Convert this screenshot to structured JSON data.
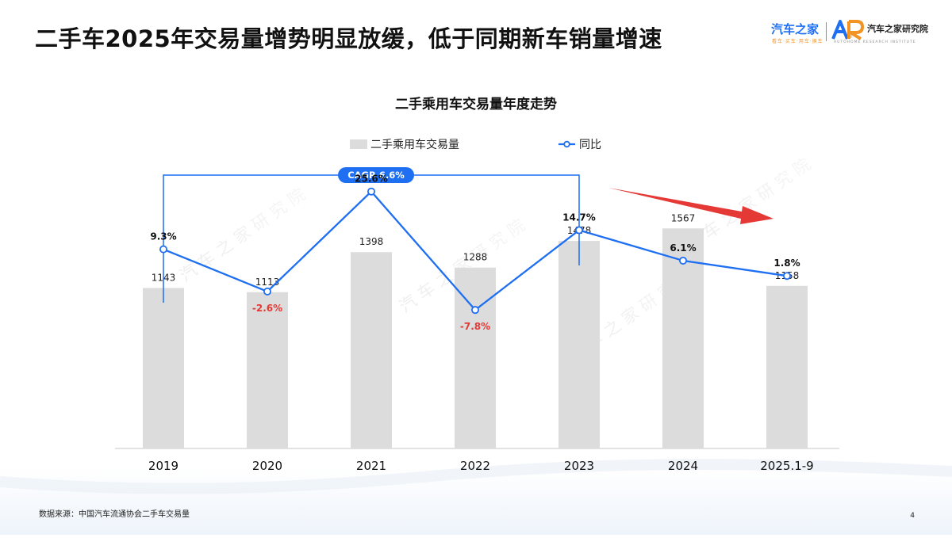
{
  "page": {
    "title": "二手车2025年交易量增势明显放缓，低于同期新车销量增速",
    "source": "数据来源：中国汽车流通协会二手车交易量",
    "page_number": "4"
  },
  "branding": {
    "primary_logo": "汽车之家",
    "primary_tagline": "看车·买车·用车·换车",
    "secondary_mark": "AR",
    "secondary_logo": "汽车之家研究院",
    "secondary_tagline": "AUTOHOME RESEARCH INSTITUTE"
  },
  "colors": {
    "bar": "#dcdcdc",
    "line": "#1f6ff2",
    "negative_label": "#e53935",
    "trend_arrow": "#e53935",
    "title_text": "#111111",
    "logo_blue": "#1f6ff2",
    "logo_orange": "#f29424",
    "footer_band": "#f4f7fb"
  },
  "chart_data": {
    "type": "bar",
    "title": "二手乘用车交易量年度走势",
    "categories": [
      "2019",
      "2020",
      "2021",
      "2022",
      "2023",
      "2024",
      "2025.1-9"
    ],
    "series": [
      {
        "name": "二手乘用车交易量",
        "type": "bar",
        "values": [
          1143,
          1113,
          1398,
          1288,
          1478,
          1567,
          1158
        ],
        "value_labels": [
          "1143",
          "1113",
          "1398",
          "1288",
          "1478",
          "1567",
          "1158"
        ]
      },
      {
        "name": "同比",
        "type": "line",
        "values": [
          9.3,
          -2.6,
          25.6,
          -7.8,
          14.7,
          6.1,
          1.8
        ],
        "value_labels": [
          "9.3%",
          "-2.6%",
          "25.6%",
          "-7.8%",
          "14.7%",
          "6.1%",
          "1.8%"
        ]
      }
    ],
    "annotation": {
      "text": "CAGR 6.6%",
      "from": "2019",
      "to": "2023"
    },
    "legend": "top-center",
    "grid": false,
    "bar_axis_range": [
      0,
      1800
    ],
    "line_axis_range": [
      -10,
      30
    ],
    "trend_arrow": "down-right"
  }
}
